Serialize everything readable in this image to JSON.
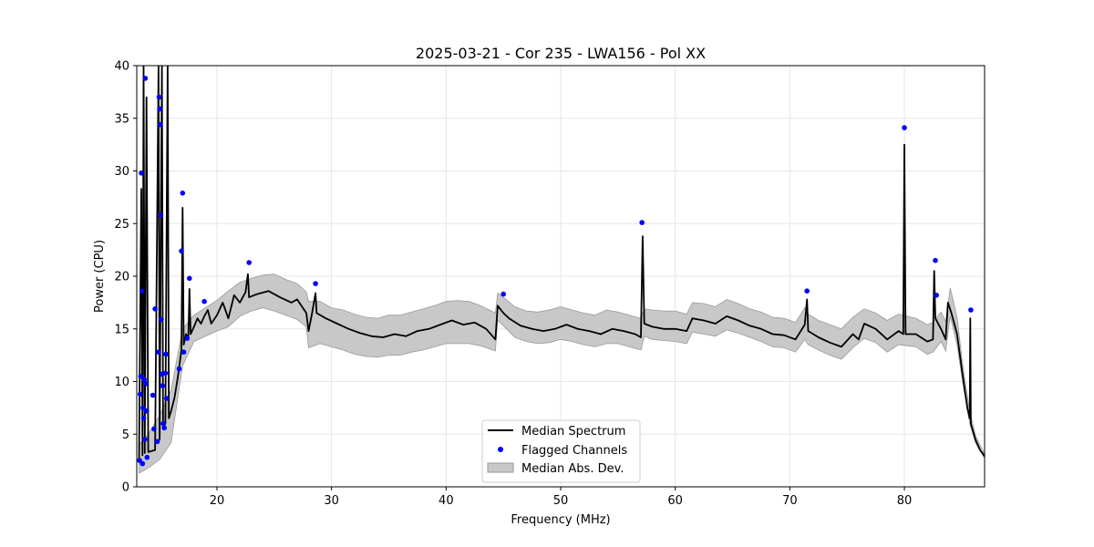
{
  "chart_data": {
    "type": "line",
    "title": "2025-03-21 - Cor 235 - LWA156 - Pol XX",
    "xlabel": "Frequency (MHz)",
    "ylabel": "Power (CPU)",
    "xlim": [
      13.0,
      87.0
    ],
    "ylim": [
      0,
      40
    ],
    "x_ticks": [
      20,
      30,
      40,
      50,
      60,
      70,
      80
    ],
    "y_ticks": [
      0,
      5,
      10,
      15,
      20,
      25,
      30,
      35,
      40
    ],
    "grid": true,
    "legend_position": "lower-center",
    "colors": {
      "median": "#000000",
      "flagged": "#0000ff",
      "mad": "#c8c8c8",
      "mad_edge": "#999999"
    },
    "series": [
      {
        "name": "Median Spectrum",
        "kind": "line",
        "points": [
          [
            13.2,
            2.6
          ],
          [
            13.4,
            28.3
          ],
          [
            13.5,
            3.0
          ],
          [
            13.6,
            40.0
          ],
          [
            13.7,
            3.2
          ],
          [
            13.85,
            37.0
          ],
          [
            14.0,
            3.3
          ],
          [
            14.3,
            3.4
          ],
          [
            14.6,
            3.5
          ],
          [
            14.9,
            40.0
          ],
          [
            15.0,
            4.5
          ],
          [
            15.2,
            40.0
          ],
          [
            15.3,
            5.5
          ],
          [
            15.5,
            6.0
          ],
          [
            15.7,
            40.0
          ],
          [
            15.8,
            6.5
          ],
          [
            16.0,
            7.2
          ],
          [
            16.3,
            8.5
          ],
          [
            16.6,
            10.5
          ],
          [
            16.9,
            13.0
          ],
          [
            17.0,
            26.5
          ],
          [
            17.1,
            13.5
          ],
          [
            17.3,
            14.5
          ],
          [
            17.5,
            14.2
          ],
          [
            17.6,
            18.8
          ],
          [
            17.7,
            14.5
          ],
          [
            18.0,
            15.2
          ],
          [
            18.3,
            16.0
          ],
          [
            18.6,
            15.5
          ],
          [
            18.9,
            16.2
          ],
          [
            19.2,
            16.8
          ],
          [
            19.5,
            15.5
          ],
          [
            20.0,
            16.3
          ],
          [
            20.5,
            17.5
          ],
          [
            21.0,
            16.0
          ],
          [
            21.5,
            18.2
          ],
          [
            22.0,
            17.5
          ],
          [
            22.5,
            18.5
          ],
          [
            22.7,
            20.2
          ],
          [
            22.8,
            18.0
          ],
          [
            23.5,
            18.3
          ],
          [
            24.5,
            18.6
          ],
          [
            25.5,
            18.0
          ],
          [
            26.5,
            17.5
          ],
          [
            27.0,
            17.8
          ],
          [
            27.8,
            16.5
          ],
          [
            28.0,
            14.8
          ],
          [
            28.3,
            16.5
          ],
          [
            28.6,
            18.4
          ],
          [
            28.7,
            16.5
          ],
          [
            29.5,
            16.0
          ],
          [
            30.5,
            15.5
          ],
          [
            31.5,
            15.0
          ],
          [
            32.5,
            14.6
          ],
          [
            33.5,
            14.3
          ],
          [
            34.5,
            14.2
          ],
          [
            35.5,
            14.5
          ],
          [
            36.5,
            14.3
          ],
          [
            37.5,
            14.8
          ],
          [
            38.5,
            15.0
          ],
          [
            39.5,
            15.4
          ],
          [
            40.5,
            15.8
          ],
          [
            41.5,
            15.4
          ],
          [
            42.5,
            15.6
          ],
          [
            43.5,
            15.0
          ],
          [
            44.3,
            14.0
          ],
          [
            44.5,
            17.2
          ],
          [
            45.0,
            16.5
          ],
          [
            45.5,
            16.0
          ],
          [
            46.5,
            15.3
          ],
          [
            47.5,
            15.0
          ],
          [
            48.5,
            14.8
          ],
          [
            49.5,
            15.0
          ],
          [
            50.5,
            15.4
          ],
          [
            51.5,
            15.0
          ],
          [
            52.5,
            14.8
          ],
          [
            53.5,
            14.5
          ],
          [
            54.5,
            15.0
          ],
          [
            55.5,
            14.8
          ],
          [
            56.5,
            14.5
          ],
          [
            57.0,
            14.2
          ],
          [
            57.15,
            23.8
          ],
          [
            57.3,
            15.5
          ],
          [
            58.0,
            15.2
          ],
          [
            59.0,
            15.0
          ],
          [
            60.0,
            15.0
          ],
          [
            61.0,
            14.8
          ],
          [
            61.5,
            16.0
          ],
          [
            62.5,
            15.8
          ],
          [
            63.5,
            15.5
          ],
          [
            64.5,
            16.2
          ],
          [
            65.5,
            15.8
          ],
          [
            66.5,
            15.3
          ],
          [
            67.5,
            15.0
          ],
          [
            68.5,
            14.5
          ],
          [
            69.5,
            14.4
          ],
          [
            70.5,
            14.0
          ],
          [
            71.3,
            15.4
          ],
          [
            71.5,
            17.8
          ],
          [
            71.6,
            14.8
          ],
          [
            72.5,
            14.2
          ],
          [
            73.5,
            13.7
          ],
          [
            74.5,
            13.3
          ],
          [
            75.0,
            13.9
          ],
          [
            75.5,
            14.5
          ],
          [
            76.0,
            14.0
          ],
          [
            76.5,
            15.5
          ],
          [
            77.5,
            15.0
          ],
          [
            78.5,
            14.0
          ],
          [
            79.5,
            14.8
          ],
          [
            79.9,
            14.5
          ],
          [
            80.0,
            32.5
          ],
          [
            80.1,
            14.5
          ],
          [
            81.0,
            14.5
          ],
          [
            82.0,
            13.8
          ],
          [
            82.5,
            14.0
          ],
          [
            82.6,
            20.5
          ],
          [
            82.7,
            16.0
          ],
          [
            83.2,
            15.0
          ],
          [
            83.6,
            14.0
          ],
          [
            83.8,
            17.5
          ],
          [
            84.1,
            16.5
          ],
          [
            84.6,
            14.5
          ],
          [
            85.1,
            10.5
          ],
          [
            85.5,
            7.5
          ],
          [
            85.7,
            6.5
          ],
          [
            85.75,
            16.0
          ],
          [
            85.8,
            6.0
          ],
          [
            86.2,
            4.5
          ],
          [
            86.6,
            3.5
          ],
          [
            87.0,
            2.9
          ]
        ]
      },
      {
        "name": "Flagged Channels",
        "kind": "scatter",
        "points": [
          [
            13.25,
            2.5
          ],
          [
            13.3,
            8.8
          ],
          [
            13.35,
            10.5
          ],
          [
            13.4,
            29.8
          ],
          [
            13.45,
            18.6
          ],
          [
            13.5,
            2.2
          ],
          [
            13.55,
            7.5
          ],
          [
            13.6,
            6.5
          ],
          [
            13.65,
            10.2
          ],
          [
            13.7,
            4.5
          ],
          [
            13.75,
            38.8
          ],
          [
            13.8,
            9.8
          ],
          [
            13.85,
            7.2
          ],
          [
            13.9,
            2.8
          ],
          [
            14.4,
            8.7
          ],
          [
            14.5,
            5.5
          ],
          [
            14.6,
            16.9
          ],
          [
            14.8,
            4.3
          ],
          [
            14.9,
            12.8
          ],
          [
            14.95,
            37.0
          ],
          [
            15.0,
            35.9
          ],
          [
            15.05,
            34.4
          ],
          [
            15.1,
            25.8
          ],
          [
            15.15,
            15.9
          ],
          [
            15.2,
            10.7
          ],
          [
            15.25,
            9.6
          ],
          [
            15.3,
            6.0
          ],
          [
            15.4,
            5.6
          ],
          [
            15.5,
            10.8
          ],
          [
            15.55,
            12.6
          ],
          [
            15.6,
            8.4
          ],
          [
            16.7,
            11.2
          ],
          [
            16.9,
            22.4
          ],
          [
            17.0,
            27.9
          ],
          [
            17.1,
            12.8
          ],
          [
            17.4,
            14.1
          ],
          [
            17.6,
            19.8
          ],
          [
            18.9,
            17.6
          ],
          [
            22.8,
            21.3
          ],
          [
            28.6,
            19.3
          ],
          [
            45.0,
            18.3
          ],
          [
            57.1,
            25.1
          ],
          [
            71.5,
            18.6
          ],
          [
            80.0,
            34.1
          ],
          [
            82.7,
            21.5
          ],
          [
            82.8,
            18.2
          ],
          [
            85.8,
            16.8
          ]
        ]
      },
      {
        "name": "Median Abs. Dev.",
        "kind": "band",
        "points": [
          [
            13.2,
            1.3,
            4.0
          ],
          [
            14.0,
            1.8,
            5.0
          ],
          [
            15.0,
            2.6,
            6.8
          ],
          [
            16.0,
            4.2,
            9.2
          ],
          [
            17.0,
            11.5,
            15.0
          ],
          [
            18.0,
            13.8,
            16.3
          ],
          [
            19.0,
            14.3,
            17.0
          ],
          [
            20.0,
            14.8,
            17.7
          ],
          [
            21.0,
            15.2,
            18.6
          ],
          [
            22.0,
            16.2,
            19.4
          ],
          [
            23.0,
            16.7,
            19.8
          ],
          [
            24.0,
            17.0,
            20.1
          ],
          [
            25.0,
            16.7,
            20.2
          ],
          [
            26.0,
            16.3,
            19.7
          ],
          [
            27.0,
            15.9,
            19.3
          ],
          [
            27.8,
            15.2,
            18.5
          ],
          [
            28.0,
            13.2,
            17.6
          ],
          [
            29.0,
            13.6,
            17.6
          ],
          [
            30.0,
            13.3,
            17.0
          ],
          [
            31.0,
            13.0,
            16.8
          ],
          [
            32.0,
            12.6,
            16.4
          ],
          [
            33.0,
            12.4,
            16.1
          ],
          [
            34.0,
            12.3,
            16.0
          ],
          [
            35.0,
            12.5,
            16.3
          ],
          [
            36.0,
            12.5,
            16.3
          ],
          [
            37.0,
            12.8,
            16.6
          ],
          [
            38.0,
            13.0,
            16.9
          ],
          [
            39.0,
            13.3,
            17.2
          ],
          [
            40.0,
            13.6,
            17.6
          ],
          [
            41.0,
            13.6,
            17.7
          ],
          [
            42.0,
            13.6,
            17.6
          ],
          [
            43.0,
            13.4,
            17.2
          ],
          [
            44.3,
            12.9,
            16.5
          ],
          [
            44.5,
            15.8,
            18.4
          ],
          [
            45.0,
            15.3,
            18.0
          ],
          [
            46.0,
            14.2,
            17.1
          ],
          [
            47.0,
            13.8,
            16.7
          ],
          [
            48.0,
            13.6,
            16.6
          ],
          [
            49.0,
            13.7,
            16.8
          ],
          [
            50.0,
            14.0,
            17.1
          ],
          [
            51.0,
            13.8,
            16.8
          ],
          [
            52.0,
            13.5,
            16.5
          ],
          [
            53.0,
            13.3,
            16.3
          ],
          [
            54.0,
            13.6,
            16.8
          ],
          [
            55.0,
            13.6,
            16.6
          ],
          [
            56.0,
            13.3,
            16.3
          ],
          [
            57.0,
            13.0,
            16.0
          ],
          [
            57.3,
            14.3,
            16.9
          ],
          [
            58.0,
            14.0,
            16.8
          ],
          [
            59.0,
            13.9,
            16.7
          ],
          [
            60.0,
            13.8,
            16.7
          ],
          [
            61.0,
            13.6,
            16.4
          ],
          [
            61.5,
            14.7,
            17.5
          ],
          [
            62.5,
            14.5,
            17.4
          ],
          [
            63.5,
            14.3,
            17.1
          ],
          [
            64.5,
            14.9,
            17.8
          ],
          [
            65.5,
            14.6,
            17.4
          ],
          [
            66.5,
            14.2,
            16.9
          ],
          [
            67.5,
            13.8,
            16.6
          ],
          [
            68.5,
            13.3,
            16.1
          ],
          [
            69.5,
            13.2,
            16.0
          ],
          [
            70.5,
            12.8,
            15.6
          ],
          [
            71.3,
            14.0,
            17.0
          ],
          [
            71.6,
            13.5,
            16.4
          ],
          [
            72.5,
            13.0,
            15.8
          ],
          [
            73.5,
            12.5,
            15.4
          ],
          [
            74.5,
            12.1,
            15.0
          ],
          [
            75.5,
            13.2,
            16.1
          ],
          [
            76.5,
            14.1,
            16.9
          ],
          [
            77.5,
            13.7,
            16.5
          ],
          [
            78.5,
            12.8,
            15.8
          ],
          [
            79.5,
            13.5,
            16.4
          ],
          [
            81.0,
            13.3,
            16.0
          ],
          [
            82.0,
            12.6,
            15.4
          ],
          [
            82.5,
            12.8,
            15.6
          ],
          [
            83.2,
            13.8,
            16.6
          ],
          [
            83.6,
            12.9,
            15.7
          ],
          [
            84.0,
            16.2,
            18.9
          ],
          [
            84.6,
            13.5,
            16.1
          ],
          [
            85.1,
            9.8,
            11.5
          ],
          [
            85.7,
            6.0,
            7.2
          ],
          [
            86.2,
            4.2,
            4.9
          ],
          [
            87.0,
            2.7,
            3.1
          ]
        ]
      }
    ]
  }
}
